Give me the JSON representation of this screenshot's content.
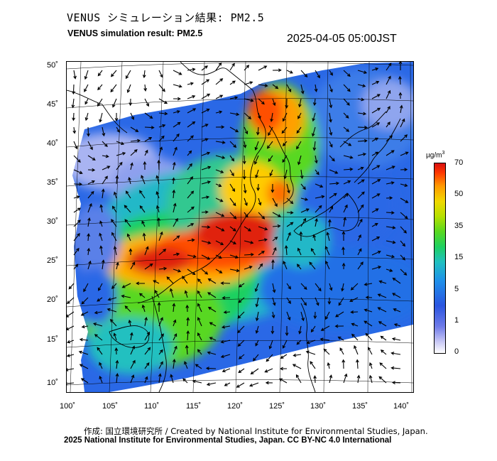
{
  "header": {
    "title_jp": "VENUS シミュレーション結果: PM2.5",
    "title_en": "VENUS simulation result: PM2.5",
    "timestamp": "2025-04-05 05:00JST"
  },
  "map": {
    "type": "pm25_concentration_map",
    "region": "East Asia",
    "lat_ticks": [
      "50˚",
      "45˚",
      "40˚",
      "35˚",
      "30˚",
      "25˚",
      "20˚",
      "15˚",
      "10˚"
    ],
    "lon_ticks": [
      "100˚",
      "105˚",
      "110˚",
      "115˚",
      "120˚",
      "125˚",
      "130˚",
      "135˚",
      "140˚"
    ],
    "overlay": "wind vectors",
    "base_layers": [
      "coastlines",
      "lat/lon graticule"
    ]
  },
  "colorbar": {
    "unit_prefix": "µg/m",
    "unit_sup": "3",
    "ticks": [
      "70",
      "50",
      "35",
      "15",
      "5",
      "1",
      "0"
    ],
    "colors": {
      "low": "#ffffff",
      "light_blue": "#6f7be8",
      "blue": "#2a55e0",
      "cyan": "#20c0c0",
      "green": "#1ed060",
      "yellow": "#f0d800",
      "orange": "#ff9a00",
      "red": "#d81010"
    }
  },
  "footer": {
    "credit_line1": "作成: 国立環境研究所 / Created by National Institute for Environmental Studies, Japan.",
    "credit_line2": "2025 National Institute for Environmental Studies, Japan. CC BY-NC 4.0 International"
  }
}
